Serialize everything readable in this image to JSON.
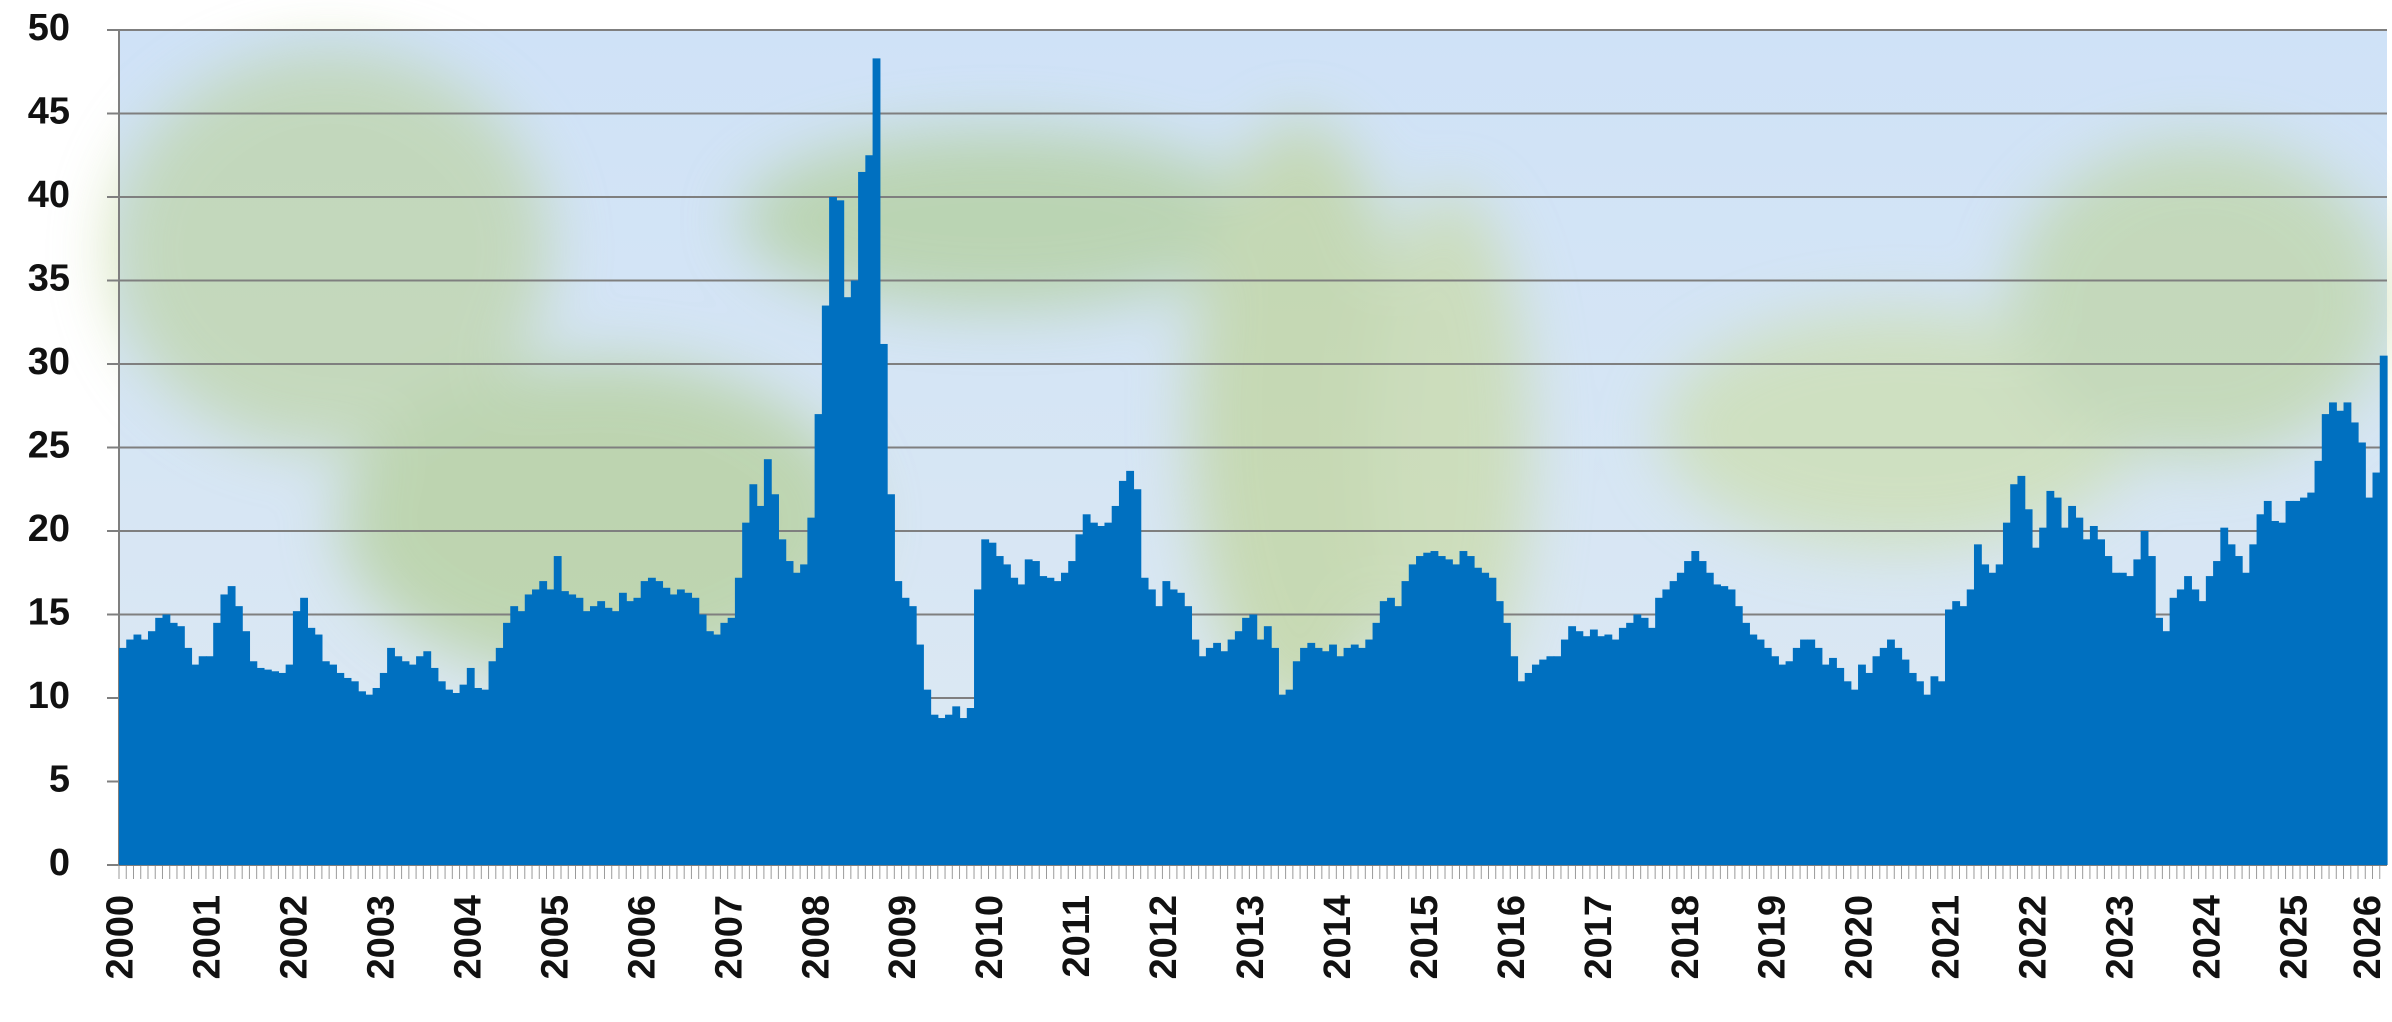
{
  "chart_data": {
    "type": "bar",
    "color": "#0070c0",
    "grid": true,
    "ylim": [
      0,
      50
    ],
    "yticks": [
      0,
      5,
      10,
      15,
      20,
      25,
      30,
      35,
      40,
      45,
      50
    ],
    "categories": [
      "2000",
      null,
      null,
      null,
      null,
      null,
      null,
      null,
      null,
      null,
      null,
      null,
      "2001",
      null,
      null,
      null,
      null,
      null,
      null,
      null,
      null,
      null,
      null,
      null,
      "2002",
      null,
      null,
      null,
      null,
      null,
      null,
      null,
      null,
      null,
      null,
      null,
      "2003",
      null,
      null,
      null,
      null,
      null,
      null,
      null,
      null,
      null,
      null,
      null,
      "2004",
      null,
      null,
      null,
      null,
      null,
      null,
      null,
      null,
      null,
      null,
      null,
      "2005",
      null,
      null,
      null,
      null,
      null,
      null,
      null,
      null,
      null,
      null,
      null,
      "2006",
      null,
      null,
      null,
      null,
      null,
      null,
      null,
      null,
      null,
      null,
      null,
      "2007",
      null,
      null,
      null,
      null,
      null,
      null,
      null,
      null,
      null,
      null,
      null,
      "2008",
      null,
      null,
      null,
      null,
      null,
      null,
      null,
      null,
      null,
      null,
      null,
      "2009",
      null,
      null,
      null,
      null,
      null,
      null,
      null,
      null,
      null,
      null,
      null,
      "2010",
      null,
      null,
      null,
      null,
      null,
      null,
      null,
      null,
      null,
      null,
      null,
      "2011",
      null,
      null,
      null,
      null,
      null,
      null,
      null,
      null,
      null,
      null,
      null,
      "2012",
      null,
      null,
      null,
      null,
      null,
      null,
      null,
      null,
      null,
      null,
      null,
      "2013",
      null,
      null,
      null,
      null,
      null,
      null,
      null,
      null,
      null,
      null,
      null,
      "2014",
      null,
      null,
      null,
      null,
      null,
      null,
      null,
      null,
      null,
      null,
      null,
      "2015",
      null,
      null,
      null,
      null,
      null,
      null,
      null,
      null,
      null,
      null,
      null,
      "2016",
      null,
      null,
      null,
      null,
      null,
      null,
      null,
      null,
      null,
      null,
      null,
      "2017",
      null,
      null,
      null,
      null,
      null,
      null,
      null,
      null,
      null,
      null,
      null,
      "2018",
      null,
      null,
      null,
      null,
      null,
      null,
      null,
      null,
      null,
      null,
      null,
      "2019",
      null,
      null,
      null,
      null,
      null,
      null,
      null,
      null,
      null,
      null,
      null,
      "2020",
      null,
      null,
      null,
      null,
      null,
      null,
      null,
      null,
      null,
      null,
      null,
      "2021",
      null,
      null,
      null,
      null,
      null,
      null,
      null,
      null,
      null,
      null,
      null,
      "2022",
      null,
      null,
      null,
      null,
      null,
      null,
      null,
      null,
      null,
      null,
      null,
      "2023",
      null,
      null,
      null,
      null,
      null,
      null,
      null,
      null,
      null,
      null,
      null,
      "2024",
      null,
      null,
      null,
      null,
      null,
      null,
      null,
      null,
      null,
      null,
      null,
      "2025",
      null,
      null,
      null,
      null,
      null,
      null,
      null,
      null,
      null,
      null,
      null,
      "2026"
    ],
    "values": [
      13,
      13.5,
      13.8,
      13.5,
      14,
      14.8,
      15,
      14.5,
      14.3,
      13,
      12,
      12.5,
      12.5,
      14.5,
      16.2,
      16.7,
      15.5,
      14,
      12.2,
      11.8,
      11.7,
      11.6,
      11.5,
      12,
      15.2,
      16,
      14.2,
      13.8,
      12.2,
      12,
      11.5,
      11.2,
      11,
      10.4,
      10.2,
      10.6,
      11.5,
      13,
      12.5,
      12.2,
      12,
      12.5,
      12.8,
      11.8,
      11,
      10.5,
      10.3,
      10.8,
      11.8,
      10.6,
      10.5,
      12.2,
      13,
      14.5,
      15.5,
      15.2,
      16.2,
      16.5,
      17,
      16.5,
      18.5,
      16.4,
      16.2,
      16,
      15.2,
      15.5,
      15.8,
      15.4,
      15.2,
      16.3,
      15.8,
      16,
      17,
      17.2,
      17,
      16.6,
      16.2,
      16.5,
      16.3,
      16,
      15,
      14,
      13.8,
      14.5,
      14.8,
      17.2,
      20.5,
      22.8,
      21.5,
      24.3,
      22.2,
      19.5,
      18.2,
      17.5,
      18,
      20.8,
      27,
      33.5,
      40,
      39.8,
      34,
      35,
      41.5,
      42.5,
      48.3,
      31.2,
      22.2,
      17,
      16,
      15.5,
      13.2,
      10.5,
      9,
      8.8,
      9,
      9.5,
      8.8,
      9.4,
      16.5,
      19.5,
      19.3,
      18.5,
      18,
      17.2,
      16.8,
      18.3,
      18.2,
      17.3,
      17.2,
      17,
      17.5,
      18.2,
      19.8,
      21,
      20.5,
      20.3,
      20.5,
      21.5,
      23,
      23.6,
      22.5,
      17.2,
      16.5,
      15.5,
      17,
      16.5,
      16.3,
      15.5,
      13.5,
      12.5,
      13,
      13.3,
      12.8,
      13.5,
      14,
      14.8,
      15,
      13.5,
      14.3,
      13,
      10.2,
      10.5,
      12.2,
      13,
      13.3,
      13,
      12.8,
      13.2,
      12.5,
      13,
      13.2,
      13,
      13.5,
      14.5,
      15.8,
      16,
      15.5,
      17,
      18,
      18.5,
      18.7,
      18.8,
      18.5,
      18.3,
      18,
      18.8,
      18.5,
      17.8,
      17.5,
      17.2,
      15.8,
      14.5,
      12.5,
      11,
      11.5,
      12,
      12.3,
      12.5,
      12.5,
      13.5,
      14.3,
      14,
      13.7,
      14.1,
      13.7,
      13.8,
      13.5,
      14.2,
      14.5,
      15,
      14.8,
      14.2,
      16,
      16.5,
      17,
      17.5,
      18.2,
      18.8,
      18.2,
      17.5,
      16.8,
      16.7,
      16.5,
      15.5,
      14.5,
      13.8,
      13.5,
      13,
      12.5,
      12,
      12.2,
      13,
      13.5,
      13.5,
      13,
      12,
      12.4,
      11.8,
      11,
      10.5,
      12,
      11.5,
      12.5,
      13,
      13.5,
      13,
      12.3,
      11.5,
      11,
      10.2,
      11.3,
      11,
      15.3,
      15.8,
      15.5,
      16.5,
      19.2,
      18,
      17.5,
      18,
      20.5,
      22.8,
      23.3,
      21.3,
      19,
      20.2,
      22.4,
      22,
      20.2,
      21.5,
      20.8,
      19.5,
      20.3,
      19.5,
      18.5,
      17.5,
      17.5,
      17.3,
      18.3,
      20,
      18.5,
      14.8,
      14,
      16,
      16.5,
      17.3,
      16.5,
      15.8,
      17.3,
      18.2,
      20.2,
      19.2,
      18.5,
      17.5,
      19.2,
      21,
      21.8,
      20.6,
      20.5,
      21.8,
      21.8,
      22,
      22.3,
      24.2,
      27,
      27.7,
      27.2,
      27.7,
      26.5,
      25.3,
      22,
      23.5,
      30.5
    ]
  }
}
